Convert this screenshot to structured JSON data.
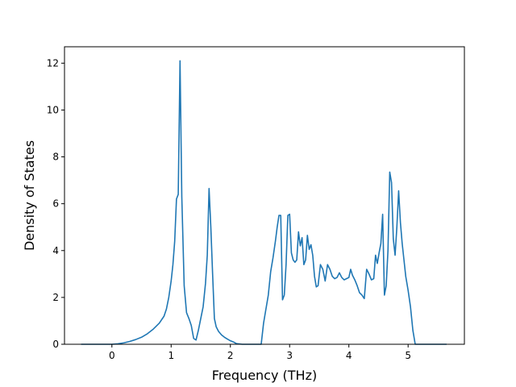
{
  "chart_data": {
    "type": "line",
    "title": "",
    "xlabel": "Frequency (THz)",
    "ylabel": "Density of States",
    "xlim": [
      -0.8,
      5.95
    ],
    "ylim": [
      0,
      12.7
    ],
    "xticks": [
      0,
      1,
      2,
      3,
      4,
      5
    ],
    "yticks": [
      0,
      2,
      4,
      6,
      8,
      10,
      12
    ],
    "grid": false,
    "legend": "none",
    "series": [
      {
        "color": "#1f77b4",
        "x": [
          -0.52,
          0.0,
          0.1,
          0.2,
          0.3,
          0.4,
          0.5,
          0.6,
          0.7,
          0.8,
          0.88,
          0.92,
          0.96,
          1.0,
          1.03,
          1.06,
          1.09,
          1.12,
          1.15,
          1.18,
          1.22,
          1.26,
          1.3,
          1.34,
          1.38,
          1.42,
          1.46,
          1.5,
          1.54,
          1.58,
          1.61,
          1.64,
          1.67,
          1.7,
          1.73,
          1.76,
          1.8,
          1.85,
          1.9,
          1.95,
          2.0,
          2.05,
          2.1,
          2.2,
          2.3,
          2.4,
          2.52,
          2.56,
          2.6,
          2.64,
          2.68,
          2.72,
          2.76,
          2.79,
          2.82,
          2.85,
          2.88,
          2.91,
          2.94,
          2.97,
          3.0,
          3.03,
          3.06,
          3.09,
          3.12,
          3.15,
          3.18,
          3.21,
          3.24,
          3.27,
          3.3,
          3.33,
          3.36,
          3.39,
          3.42,
          3.45,
          3.48,
          3.52,
          3.56,
          3.6,
          3.64,
          3.68,
          3.72,
          3.76,
          3.8,
          3.84,
          3.88,
          3.92,
          3.96,
          4.0,
          4.03,
          4.06,
          4.1,
          4.14,
          4.18,
          4.22,
          4.26,
          4.3,
          4.34,
          4.38,
          4.42,
          4.45,
          4.48,
          4.51,
          4.54,
          4.57,
          4.6,
          4.63,
          4.66,
          4.69,
          4.72,
          4.75,
          4.78,
          4.81,
          4.84,
          4.87,
          4.9,
          4.93,
          4.96,
          5.0,
          5.04,
          5.08,
          5.12,
          5.16,
          5.3,
          5.65
        ],
        "y": [
          0,
          0,
          0.02,
          0.06,
          0.12,
          0.2,
          0.3,
          0.45,
          0.65,
          0.9,
          1.2,
          1.5,
          2.0,
          2.7,
          3.4,
          4.4,
          6.2,
          6.4,
          12.1,
          6.3,
          2.5,
          1.35,
          1.1,
          0.8,
          0.25,
          0.18,
          0.6,
          1.1,
          1.6,
          2.6,
          3.8,
          6.65,
          5.0,
          3.0,
          1.1,
          0.75,
          0.55,
          0.4,
          0.3,
          0.22,
          0.15,
          0.1,
          0.03,
          0,
          0,
          0,
          0,
          0.9,
          1.5,
          2.1,
          3.1,
          3.7,
          4.4,
          5.0,
          5.5,
          5.5,
          1.9,
          2.1,
          3.4,
          5.5,
          5.55,
          3.9,
          3.6,
          3.5,
          3.6,
          4.8,
          4.2,
          4.55,
          3.4,
          3.6,
          4.65,
          4.05,
          4.25,
          3.8,
          2.9,
          2.45,
          2.5,
          3.4,
          3.2,
          2.7,
          3.4,
          3.2,
          2.9,
          2.8,
          2.85,
          3.05,
          2.85,
          2.75,
          2.8,
          2.85,
          3.2,
          2.95,
          2.75,
          2.5,
          2.2,
          2.1,
          1.95,
          3.2,
          3.0,
          2.75,
          2.8,
          3.8,
          3.45,
          3.9,
          4.3,
          5.55,
          2.1,
          2.5,
          4.0,
          7.35,
          6.9,
          4.5,
          3.8,
          5.0,
          6.55,
          5.2,
          4.3,
          3.6,
          2.9,
          2.3,
          1.6,
          0.6,
          0,
          0,
          0,
          0
        ]
      }
    ]
  }
}
